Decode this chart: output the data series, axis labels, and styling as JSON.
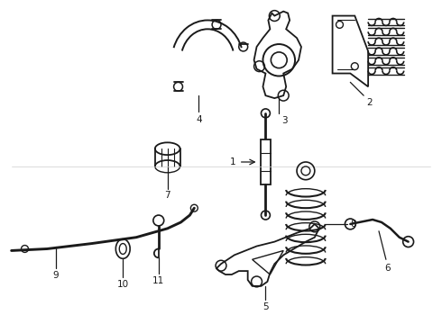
{
  "background_color": "#ffffff",
  "line_color": "#1a1a1a",
  "fig_width": 4.9,
  "fig_height": 3.6,
  "dpi": 100,
  "components": {
    "label_fontsize": 7.5
  }
}
